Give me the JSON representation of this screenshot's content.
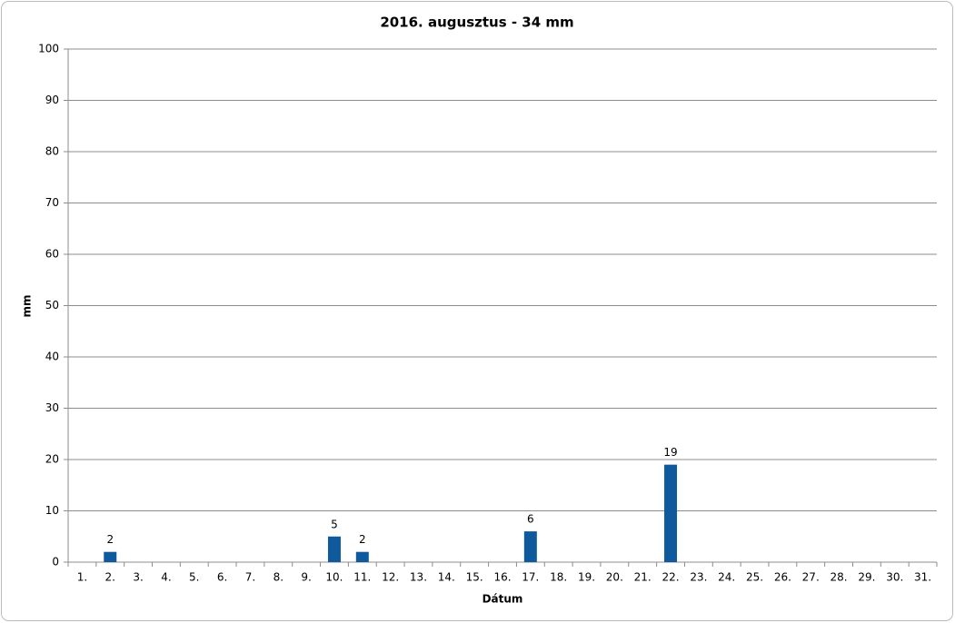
{
  "chart_data": {
    "type": "bar",
    "title": "2016.  augusztus - 34 mm",
    "x_label": "Dátum",
    "y_label": "mm",
    "categories": [
      "1.",
      "2.",
      "3.",
      "4.",
      "5.",
      "6.",
      "7.",
      "8.",
      "9.",
      "10.",
      "11.",
      "12.",
      "13.",
      "14.",
      "15.",
      "16.",
      "17.",
      "18.",
      "19.",
      "20.",
      "21.",
      "22.",
      "23.",
      "24.",
      "25.",
      "26.",
      "27.",
      "28.",
      "29.",
      "30.",
      "31."
    ],
    "values": [
      null,
      2,
      null,
      null,
      null,
      null,
      null,
      null,
      null,
      5,
      2,
      null,
      null,
      null,
      null,
      null,
      6,
      null,
      null,
      null,
      null,
      19,
      null,
      null,
      null,
      null,
      null,
      null,
      null,
      null,
      null
    ],
    "color": "#0f5a9c",
    "ylim": [
      0,
      100
    ],
    "yticks": [
      0,
      10,
      20,
      30,
      40,
      50,
      60,
      70,
      80,
      90,
      100
    ],
    "grid": true
  }
}
